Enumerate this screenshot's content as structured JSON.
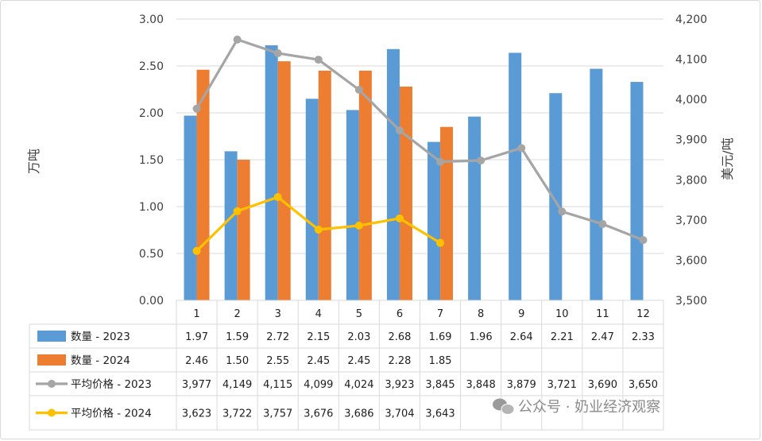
{
  "chart_data": {
    "type": "bar",
    "categories": [
      "1",
      "2",
      "3",
      "4",
      "5",
      "6",
      "7",
      "8",
      "9",
      "10",
      "11",
      "12"
    ],
    "left_axis": {
      "label": "万吨",
      "ylim": [
        0,
        3.0
      ],
      "ticks": [
        "0.00",
        "0.50",
        "1.00",
        "1.50",
        "2.00",
        "2.50",
        "3.00"
      ]
    },
    "right_axis": {
      "label": "美元/吨",
      "ylim": [
        3500,
        4200
      ],
      "ticks": [
        "3,500",
        "3,600",
        "3,700",
        "3,800",
        "3,900",
        "4,000",
        "4,100",
        "4,200"
      ]
    },
    "series": [
      {
        "name": "数量 - 2023",
        "kind": "bar",
        "axis": "left",
        "color": "#5b9bd5",
        "values": [
          1.97,
          1.59,
          2.72,
          2.15,
          2.03,
          2.68,
          1.69,
          1.96,
          2.64,
          2.21,
          2.47,
          2.33
        ],
        "labels": [
          "1.97",
          "1.59",
          "2.72",
          "2.15",
          "2.03",
          "2.68",
          "1.69",
          "1.96",
          "2.64",
          "2.21",
          "2.47",
          "2.33"
        ]
      },
      {
        "name": "数量 - 2024",
        "kind": "bar",
        "axis": "left",
        "color": "#ed7d31",
        "values": [
          2.46,
          1.5,
          2.55,
          2.45,
          2.45,
          2.28,
          1.85,
          null,
          null,
          null,
          null,
          null
        ],
        "labels": [
          "2.46",
          "1.50",
          "2.55",
          "2.45",
          "2.45",
          "2.28",
          "1.85",
          "",
          "",
          "",
          "",
          ""
        ]
      },
      {
        "name": "平均价格 - 2023",
        "kind": "line",
        "axis": "right",
        "color": "#a5a5a5",
        "values": [
          3977,
          4149,
          4115,
          4099,
          4024,
          3923,
          3845,
          3848,
          3879,
          3721,
          3690,
          3650
        ],
        "labels": [
          "3,977",
          "4,149",
          "4,115",
          "4,099",
          "4,024",
          "3,923",
          "3,845",
          "3,848",
          "3,879",
          "3,721",
          "3,690",
          "3,650"
        ]
      },
      {
        "name": "平均价格 - 2024",
        "kind": "line",
        "axis": "right",
        "color": "#ffc000",
        "values": [
          3623,
          3722,
          3757,
          3676,
          3686,
          3704,
          3643,
          null,
          null,
          null,
          null,
          null
        ],
        "labels": [
          "3,623",
          "3,722",
          "3,757",
          "3,676",
          "3,686",
          "3,704",
          "3,643",
          "",
          "",
          "",
          "",
          ""
        ]
      }
    ],
    "data_table": true,
    "grid": true
  },
  "watermark": "公众号 · 奶业经济观察"
}
